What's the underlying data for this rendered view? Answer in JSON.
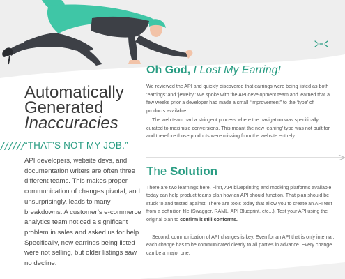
{
  "left": {
    "title_line1": "Automatically",
    "title_line2": "Generated",
    "title_line3": "Inaccuracies",
    "slashes": "//////",
    "quote": "“THAT’S NOT MY JOB.”",
    "body": "API developers, website devs, and documentation writers are often three different teams. This makes proper communication of changes pivotal, and unsurprisingly, leads to many breakdowns. A customer’s e-commerce analytics team noticed a significant problem in sales and asked us for help. Specifically, new earrings being listed were not selling, but older listings saw no decline."
  },
  "earring": {
    "heading_bold": "Oh God,",
    "heading_rest": " I Lost My Earring!",
    "p1": "We reviewed the API and quickly discovered that earrings were being listed as both ‘earrings’ and ‘jewelry.’ We spoke with the API development team and learned that a few weeks prior a developer had made a small “improvement” to the ‘type’ of products available.",
    "p2": "The web team had a stringent process where the navigation was specifically curated to maximize conversions. This meant the new ‘earring’ type was not built for, and therefore those products were missing from the website entirely."
  },
  "solution": {
    "heading_the": "The ",
    "heading_bold": "Solution",
    "p1_a": "There are two learnings here. First, API blueprinting and mocking platforms available today can help product teams plan how an API should function. That plan should be stuck to and tested against. There are tools today that allow you to create an API test from a definition file (Swagger, RAML, API Blueprint, etc...). Test your API using the original plan to ",
    "p1_b": "confirm it still conforms.",
    "p2": "Second, communication of API changes is key. Even for an API that is only internal, each change has to be communicated clearly to all parties in advance. Every change can be a major one."
  },
  "colors": {
    "accent": "#2a9d83",
    "band": "#eeeeee",
    "text": "#555555"
  },
  "icons": {
    "illustration": "woman-crawling-illustration",
    "sparkle": "sparkle-icon",
    "arrow": "arrow-left-icon"
  }
}
